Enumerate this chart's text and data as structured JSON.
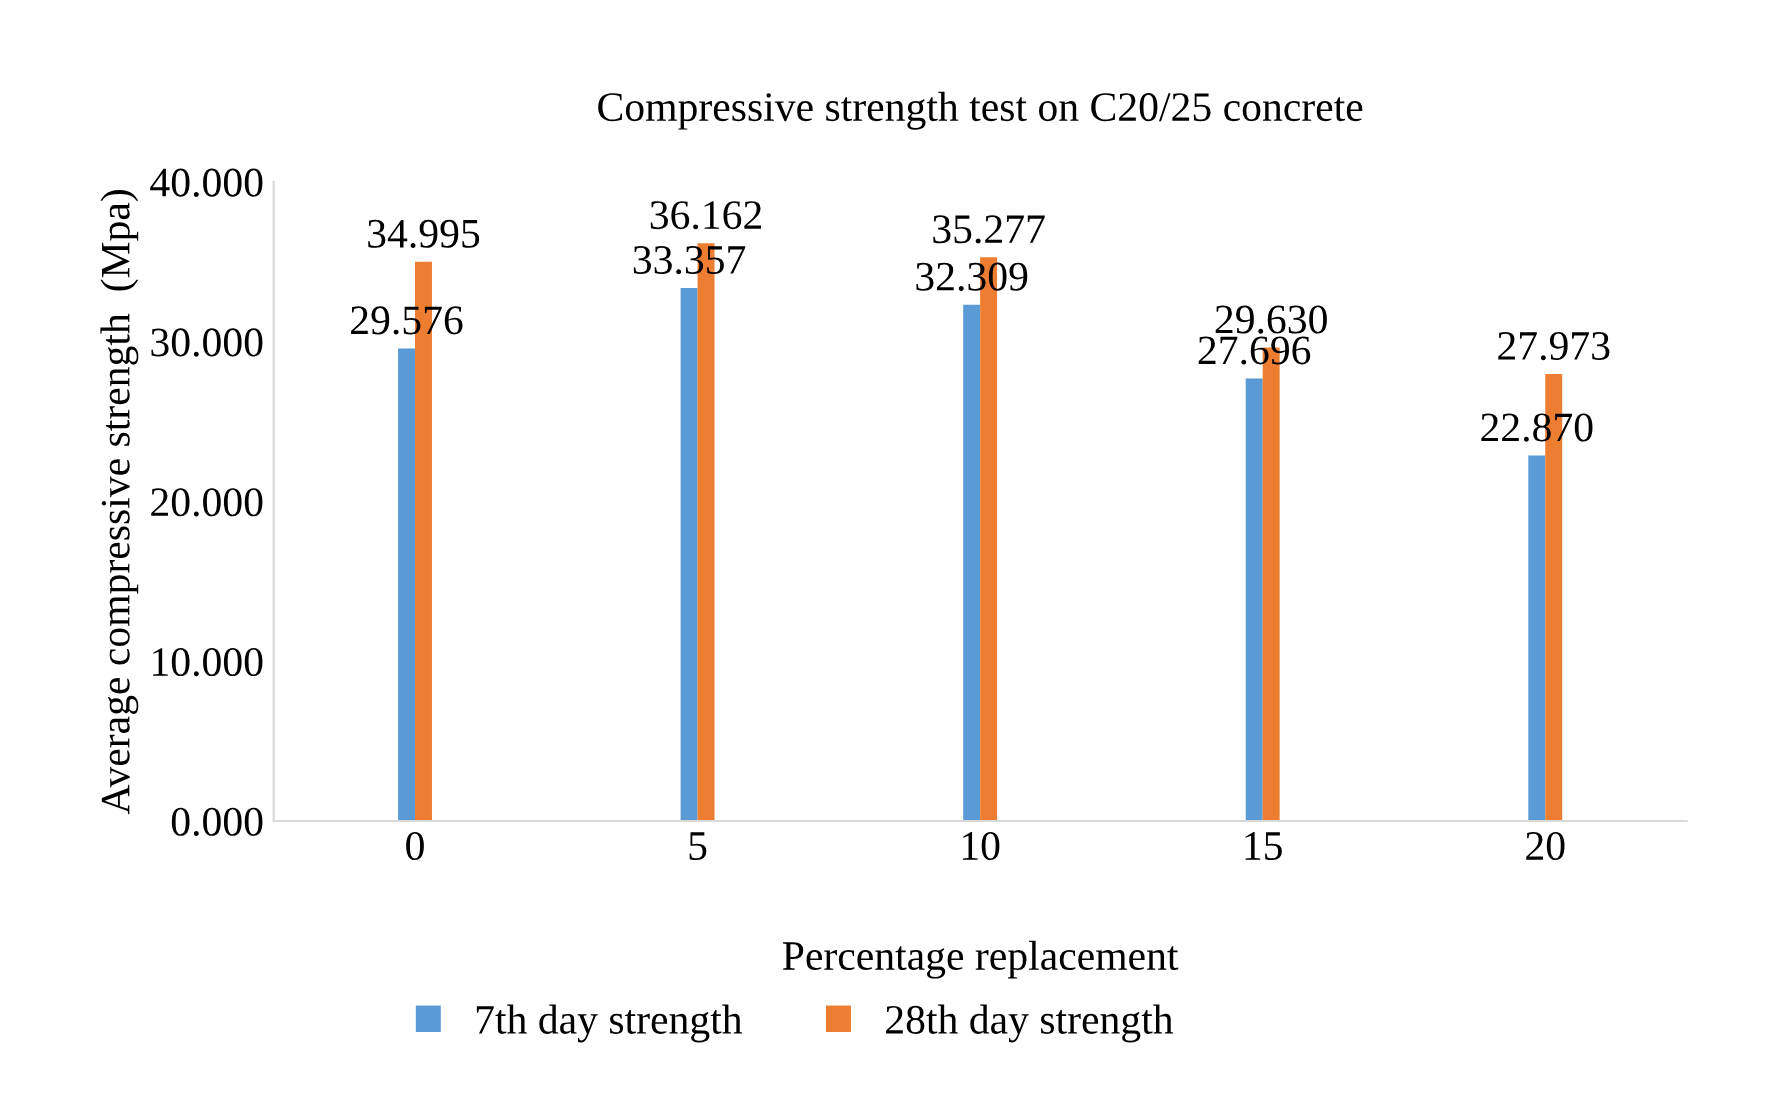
{
  "chart_data": {
    "type": "bar",
    "title": "Compressive strength test on C20/25 concrete",
    "xlabel": "Percentage replacement",
    "ylabel": "Average compressive strength  (Mpa)",
    "categories": [
      "0",
      "5",
      "10",
      "15",
      "20"
    ],
    "series": [
      {
        "name": "7th day strength",
        "color": "#5b9bd5",
        "values": [
          29.576,
          33.357,
          32.309,
          27.696,
          22.87
        ],
        "value_labels": [
          "29.576",
          "33.357",
          "32.309",
          "27.696",
          "22.870"
        ]
      },
      {
        "name": "28th day strength",
        "color": "#ed7d31",
        "values": [
          34.995,
          36.162,
          35.277,
          29.63,
          27.973
        ],
        "value_labels": [
          "34.995",
          "36.162",
          "35.277",
          "29.630",
          "27.973"
        ]
      }
    ],
    "ylim": [
      0,
      40
    ],
    "yticks": [
      {
        "value": 0,
        "label": "0.000"
      },
      {
        "value": 10,
        "label": "10.000"
      },
      {
        "value": 20,
        "label": "20.000"
      },
      {
        "value": 30,
        "label": "30.000"
      },
      {
        "value": 40,
        "label": "40.000"
      }
    ],
    "grid": false,
    "legend": "bottom"
  }
}
